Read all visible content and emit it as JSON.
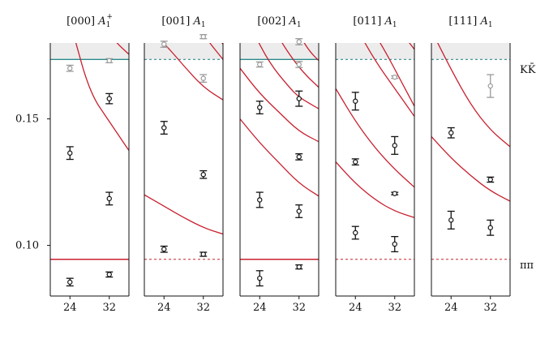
{
  "chart_data": {
    "type": "scatter",
    "y_ticks": [
      0.1,
      0.15
    ],
    "y_tick_labels": [
      "0.10",
      "0.15"
    ],
    "ylim": [
      0.08,
      0.18
    ],
    "x_ticks": [
      24,
      32
    ],
    "x_tick_labels": [
      "24",
      "32"
    ],
    "xlim": [
      20,
      36
    ],
    "grid": false,
    "thresholds": {
      "pipi": {
        "label": "ππ",
        "value": 0.0945,
        "color": "#c8202f"
      },
      "kkbar": {
        "label": "KK̄",
        "value": 0.1735,
        "color": "#2e8b8b"
      }
    },
    "shaded_above": 0.1735,
    "colors": {
      "black": "#111111",
      "gray": "#9a9a9a",
      "red": "#c8202f",
      "teal": "#2e8b8b",
      "shade": "#ececec"
    },
    "panels": [
      {
        "label_parts": [
          "[000] ",
          "A",
          "1",
          "+"
        ],
        "pipi_line": "solid",
        "kk_line": "solid",
        "points": [
          {
            "L": 24,
            "E": 0.0855,
            "err": 0.0015,
            "color": "black"
          },
          {
            "L": 24,
            "E": 0.1365,
            "err": 0.0025,
            "color": "black"
          },
          {
            "L": 24,
            "E": 0.17,
            "err": 0.0012,
            "color": "gray"
          },
          {
            "L": 32,
            "E": 0.0885,
            "err": 0.001,
            "color": "black"
          },
          {
            "L": 32,
            "E": 0.1185,
            "err": 0.0025,
            "color": "black"
          },
          {
            "L": 32,
            "E": 0.158,
            "err": 0.002,
            "color": "black"
          },
          {
            "L": 32,
            "E": 0.173,
            "err": 0.0008,
            "color": "gray"
          }
        ],
        "curves": [
          {
            "color": "red",
            "pts": [
              [
                24.5,
                0.185
              ],
              [
                28,
                0.1605
              ],
              [
                32,
                0.149
              ],
              [
                36,
                0.1375
              ]
            ]
          },
          {
            "color": "red",
            "pts": [
              [
                31.5,
                0.185
              ],
              [
                33.5,
                0.18
              ],
              [
                36,
                0.1755
              ]
            ]
          }
        ]
      },
      {
        "label_parts": [
          "[001] ",
          "A",
          "1",
          ""
        ],
        "pipi_line": "dashed",
        "kk_line": "dashed",
        "points": [
          {
            "L": 24,
            "E": 0.0985,
            "err": 0.0012,
            "color": "black"
          },
          {
            "L": 24,
            "E": 0.1465,
            "err": 0.0025,
            "color": "black"
          },
          {
            "L": 24,
            "E": 0.1795,
            "err": 0.0012,
            "color": "gray"
          },
          {
            "L": 32,
            "E": 0.0965,
            "err": 0.0008,
            "color": "black"
          },
          {
            "L": 32,
            "E": 0.128,
            "err": 0.0015,
            "color": "black"
          },
          {
            "L": 32,
            "E": 0.166,
            "err": 0.0015,
            "color": "gray"
          },
          {
            "L": 32,
            "E": 0.1825,
            "err": 0.0008,
            "color": "gray"
          }
        ],
        "curves": [
          {
            "color": "red",
            "pts": [
              [
                20,
                0.12
              ],
              [
                24,
                0.1155
              ],
              [
                28,
                0.111
              ],
              [
                32,
                0.107
              ],
              [
                36,
                0.1045
              ]
            ]
          },
          {
            "color": "red",
            "pts": [
              [
                20.5,
                0.1855
              ],
              [
                24,
                0.18
              ],
              [
                28,
                0.171
              ],
              [
                32,
                0.1625
              ],
              [
                36,
                0.1575
              ]
            ]
          },
          {
            "color": "red",
            "pts": [
              [
                31.5,
                0.185
              ],
              [
                33.5,
                0.1795
              ],
              [
                36,
                0.1735
              ]
            ]
          },
          {
            "color": "red",
            "pts": [
              [
                34,
                0.185
              ],
              [
                36,
                0.1795
              ]
            ]
          },
          {
            "color": "teal",
            "pts": [
              [
                24,
                0.1855
              ],
              [
                28,
                0.1835
              ],
              [
                32,
                0.1825
              ],
              [
                36,
                0.1805
              ]
            ]
          }
        ]
      },
      {
        "label_parts": [
          "[002] ",
          "A",
          "1",
          ""
        ],
        "pipi_line": "solid",
        "kk_line": "solid",
        "points": [
          {
            "L": 24,
            "E": 0.087,
            "err": 0.003,
            "color": "black"
          },
          {
            "L": 24,
            "E": 0.118,
            "err": 0.003,
            "color": "black"
          },
          {
            "L": 24,
            "E": 0.1545,
            "err": 0.0025,
            "color": "black"
          },
          {
            "L": 24,
            "E": 0.1715,
            "err": 0.001,
            "color": "gray"
          },
          {
            "L": 32,
            "E": 0.0915,
            "err": 0.0008,
            "color": "black"
          },
          {
            "L": 32,
            "E": 0.1135,
            "err": 0.0025,
            "color": "black"
          },
          {
            "L": 32,
            "E": 0.135,
            "err": 0.0012,
            "color": "black"
          },
          {
            "L": 32,
            "E": 0.158,
            "err": 0.003,
            "color": "black"
          },
          {
            "L": 32,
            "E": 0.1715,
            "err": 0.0012,
            "color": "gray"
          },
          {
            "L": 32,
            "E": 0.1805,
            "err": 0.0012,
            "color": "gray"
          }
        ],
        "curves": [
          {
            "color": "red",
            "pts": [
              [
                20,
                0.15
              ],
              [
                24,
                0.1405
              ],
              [
                28,
                0.1325
              ],
              [
                32,
                0.1245
              ],
              [
                36,
                0.1195
              ]
            ]
          },
          {
            "color": "red",
            "pts": [
              [
                20,
                0.17
              ],
              [
                24,
                0.16
              ],
              [
                28,
                0.1525
              ],
              [
                32,
                0.145
              ],
              [
                36,
                0.141
              ]
            ]
          },
          {
            "color": "red",
            "pts": [
              [
                22.5,
                0.185
              ],
              [
                26,
                0.172
              ],
              [
                30,
                0.1625
              ],
              [
                32,
                0.1585
              ],
              [
                36,
                0.154
              ]
            ]
          },
          {
            "color": "red",
            "pts": [
              [
                27,
                0.185
              ],
              [
                30,
                0.1755
              ],
              [
                33,
                0.168
              ],
              [
                36,
                0.1625
              ]
            ]
          },
          {
            "color": "red",
            "pts": [
              [
                31.5,
                0.185
              ],
              [
                34,
                0.177
              ],
              [
                36,
                0.173
              ]
            ]
          }
        ]
      },
      {
        "label_parts": [
          "[011] ",
          "A",
          "1",
          ""
        ],
        "pipi_line": "dashed",
        "kk_line": "dashed",
        "points": [
          {
            "L": 24,
            "E": 0.105,
            "err": 0.0025,
            "color": "black"
          },
          {
            "L": 24,
            "E": 0.133,
            "err": 0.0012,
            "color": "black"
          },
          {
            "L": 24,
            "E": 0.157,
            "err": 0.0035,
            "color": "black"
          },
          {
            "L": 32,
            "E": 0.1005,
            "err": 0.003,
            "color": "black"
          },
          {
            "L": 32,
            "E": 0.1205,
            "err": 0.0005,
            "color": "black"
          },
          {
            "L": 32,
            "E": 0.1395,
            "err": 0.0035,
            "color": "black"
          },
          {
            "L": 32,
            "E": 0.1665,
            "err": 0.0005,
            "color": "gray"
          }
        ],
        "curves": [
          {
            "color": "red",
            "pts": [
              [
                20,
                0.133
              ],
              [
                24,
                0.1245
              ],
              [
                28,
                0.118
              ],
              [
                32,
                0.1135
              ],
              [
                36,
                0.111
              ]
            ]
          },
          {
            "color": "red",
            "pts": [
              [
                20,
                0.162
              ],
              [
                24,
                0.149
              ],
              [
                28,
                0.1385
              ],
              [
                32,
                0.13
              ],
              [
                36,
                0.123
              ]
            ]
          },
          {
            "color": "red",
            "pts": [
              [
                24.5,
                0.185
              ],
              [
                28,
                0.173
              ],
              [
                32,
                0.162
              ],
              [
                36,
                0.151
              ]
            ]
          },
          {
            "color": "red",
            "pts": [
              [
                27.5,
                0.185
              ],
              [
                30,
                0.177
              ],
              [
                33,
                0.166
              ],
              [
                36,
                0.155
              ]
            ]
          },
          {
            "color": "red",
            "pts": [
              [
                33,
                0.185
              ],
              [
                36,
                0.1775
              ]
            ]
          },
          {
            "color": "red",
            "pts": [
              [
                35,
                0.185
              ],
              [
                36,
                0.182
              ]
            ]
          }
        ]
      },
      {
        "label_parts": [
          "[111] ",
          "A",
          "1",
          ""
        ],
        "pipi_line": "dashed",
        "kk_line": "dashed",
        "points": [
          {
            "L": 24,
            "E": 0.11,
            "err": 0.0035,
            "color": "black"
          },
          {
            "L": 24,
            "E": 0.1445,
            "err": 0.002,
            "color": "black"
          },
          {
            "L": 32,
            "E": 0.107,
            "err": 0.003,
            "color": "black"
          },
          {
            "L": 32,
            "E": 0.126,
            "err": 0.001,
            "color": "black"
          },
          {
            "L": 32,
            "E": 0.163,
            "err": 0.0045,
            "color": "gray"
          }
        ],
        "curves": [
          {
            "color": "red",
            "pts": [
              [
                20,
                0.143
              ],
              [
                24,
                0.1345
              ],
              [
                28,
                0.1275
              ],
              [
                32,
                0.1215
              ],
              [
                36,
                0.1175
              ]
            ]
          },
          {
            "color": "red",
            "pts": [
              [
                20,
                0.185
              ],
              [
                24,
                0.1695
              ],
              [
                28,
                0.1555
              ],
              [
                32,
                0.1455
              ],
              [
                36,
                0.139
              ]
            ]
          }
        ]
      }
    ]
  }
}
